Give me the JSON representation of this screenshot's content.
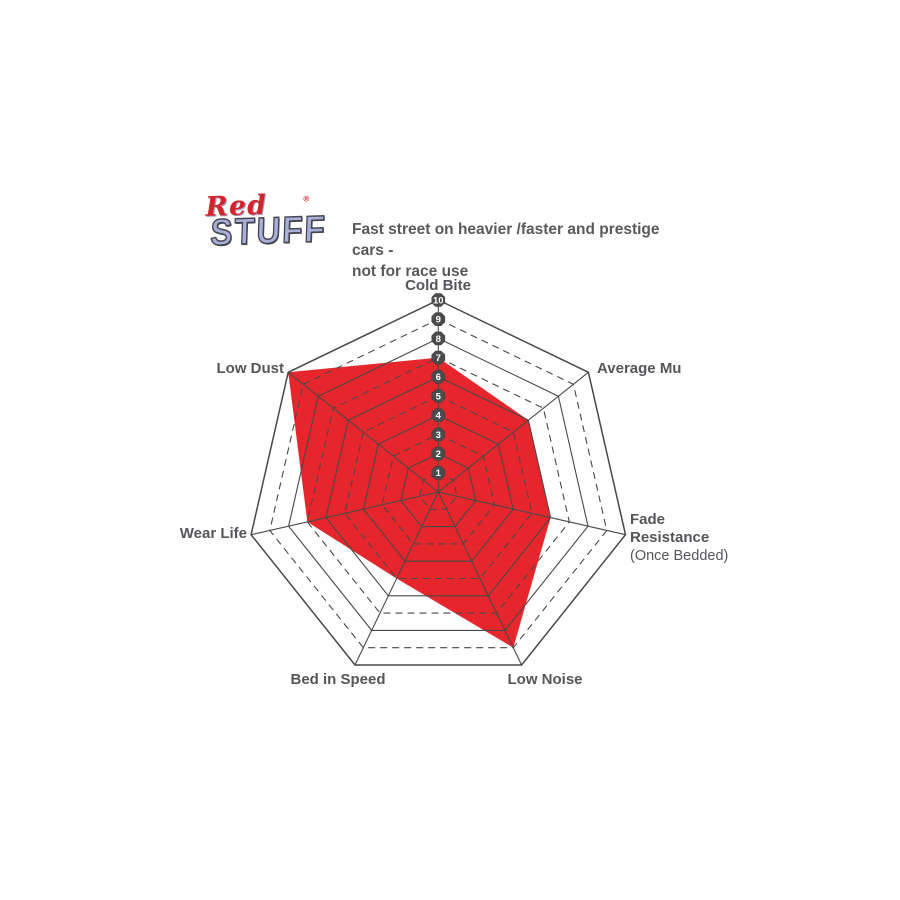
{
  "logo": {
    "line1": "Red",
    "registered": "®",
    "line2": "STUFF"
  },
  "subtitle": {
    "line1": "Fast street on heavier /faster and prestige cars -",
    "line2": "not for race use"
  },
  "chart_data": {
    "type": "radar",
    "categories": [
      "Cold Bite",
      "Average Mu",
      "Fade Resistance",
      "Low Noise",
      "Bed in Speed",
      "Wear Life",
      "Low Dust"
    ],
    "values": [
      7,
      6,
      6,
      9,
      5,
      7,
      10
    ],
    "axis_note": {
      "axis": "Fade Resistance",
      "note": "(Once Bedded)"
    },
    "scale": {
      "min": 0,
      "max": 10,
      "tick_labels": [
        "1",
        "2",
        "3",
        "4",
        "5",
        "6",
        "7",
        "8",
        "9",
        "10"
      ]
    },
    "layout_hints": {
      "rings": "even solid, odd dashed",
      "spokes": 7,
      "tick_badges_on_axis": "Cold Bite"
    },
    "fill_color": "#e7262c",
    "grid_color": "#47484a",
    "badge_color": "#4a4b4d",
    "badge_text_color": "#ffffff",
    "label_color": "#55565a"
  }
}
